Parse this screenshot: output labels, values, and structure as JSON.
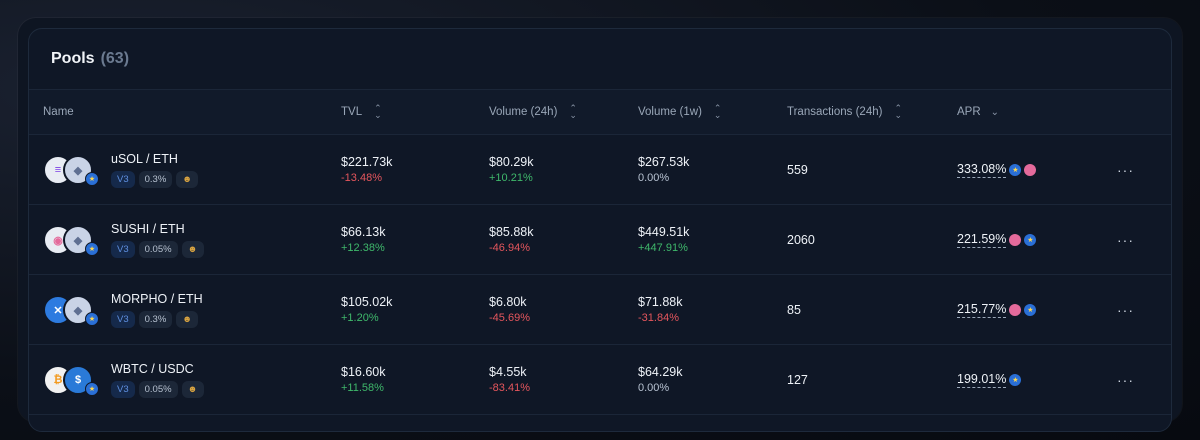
{
  "header": {
    "title": "Pools",
    "count": "(63)"
  },
  "columns": {
    "name": "Name",
    "tvl": "TVL",
    "volume_24h": "Volume (24h)",
    "volume_1w": "Volume (1w)",
    "tx_24h": "Transactions (24h)",
    "apr": "APR"
  },
  "icons": {
    "sort": "sort-updown-icon",
    "apr_sort": "chevron-down-icon",
    "more": "more-horizontal-icon"
  },
  "rows": [
    {
      "pair": "uSOL / ETH",
      "version": "V3",
      "fee": "0.3%",
      "tvl": "$221.73k",
      "tvl_change": "-13.48%",
      "vol24": "$80.29k",
      "vol24_change": "+10.21%",
      "vol1w": "$267.53k",
      "vol1w_change": "0.00%",
      "tx": "559",
      "apr": "333.08%",
      "more": "···"
    },
    {
      "pair": "SUSHI / ETH",
      "version": "V3",
      "fee": "0.05%",
      "tvl": "$66.13k",
      "tvl_change": "+12.38%",
      "vol24": "$85.88k",
      "vol24_change": "-46.94%",
      "vol1w": "$449.51k",
      "vol1w_change": "+447.91%",
      "tx": "2060",
      "apr": "221.59%",
      "more": "···"
    },
    {
      "pair": "MORPHO / ETH",
      "version": "V3",
      "fee": "0.3%",
      "tvl": "$105.02k",
      "tvl_change": "+1.20%",
      "vol24": "$6.80k",
      "vol24_change": "-45.69%",
      "vol1w": "$71.88k",
      "vol1w_change": "-31.84%",
      "tx": "85",
      "apr": "215.77%",
      "more": "···"
    },
    {
      "pair": "WBTC / USDC",
      "version": "V3",
      "fee": "0.05%",
      "tvl": "$16.60k",
      "tvl_change": "+11.58%",
      "vol24": "$4.55k",
      "vol24_change": "-83.41%",
      "vol1w": "$64.29k",
      "vol1w_change": "0.00%",
      "tx": "127",
      "apr": "199.01%",
      "more": "···"
    }
  ]
}
